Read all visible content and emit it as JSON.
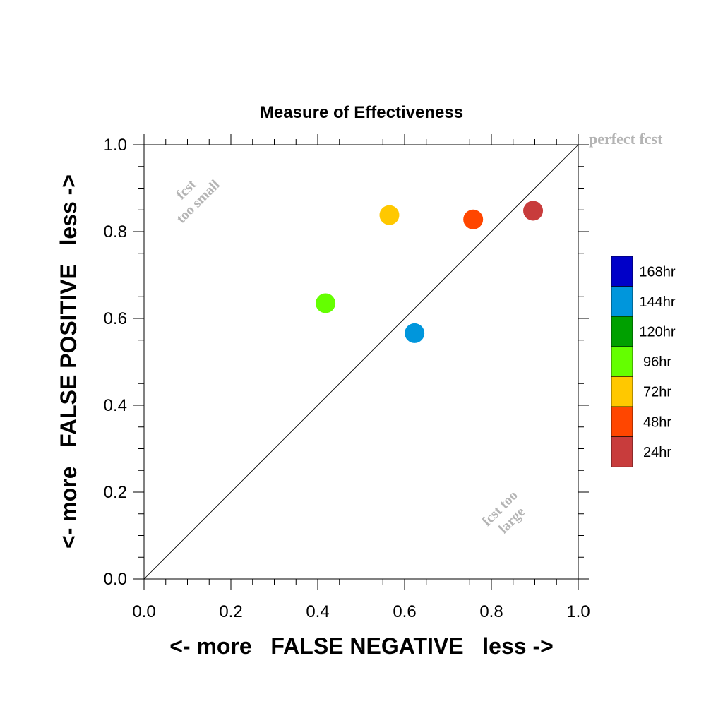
{
  "chart_data": {
    "type": "scatter",
    "title": "Measure of Effectiveness",
    "xlabel": "<- more   FALSE NEGATIVE   less ->",
    "ylabel": "<- more   FALSE POSITIVE   less ->",
    "xlim": [
      0.0,
      1.0
    ],
    "ylim": [
      0.0,
      1.0
    ],
    "x_ticks": [
      "0.0",
      "0.2",
      "0.4",
      "0.6",
      "0.8",
      "1.0"
    ],
    "y_ticks": [
      "0.0",
      "0.2",
      "0.4",
      "0.6",
      "0.8",
      "1.0"
    ],
    "grid": false,
    "legend_position": "right",
    "reference_line": {
      "x": [
        0.0,
        1.0
      ],
      "y": [
        0.0,
        1.0
      ]
    },
    "annotations": {
      "perfect": "perfect fcst",
      "small_line1": "fcst",
      "small_line2": "too small",
      "large_line1": "fcst too",
      "large_line2": "large"
    },
    "legend": [
      {
        "label": "168hr",
        "color": "#0000c8"
      },
      {
        "label": "144hr",
        "color": "#0096dc"
      },
      {
        "label": "120hr",
        "color": "#00a000"
      },
      {
        "label": "96hr",
        "color": "#64ff00"
      },
      {
        "label": "72hr",
        "color": "#ffc800"
      },
      {
        "label": "48hr",
        "color": "#ff4600"
      },
      {
        "label": "24hr",
        "color": "#c83c3c"
      }
    ],
    "points": [
      {
        "series": "144hr",
        "x": 0.623,
        "y": 0.566,
        "color": "#0096dc"
      },
      {
        "series": "96hr",
        "x": 0.418,
        "y": 0.635,
        "color": "#64ff00"
      },
      {
        "series": "72hr",
        "x": 0.565,
        "y": 0.838,
        "color": "#ffc800"
      },
      {
        "series": "48hr",
        "x": 0.758,
        "y": 0.828,
        "color": "#ff4600"
      },
      {
        "series": "24hr",
        "x": 0.896,
        "y": 0.848,
        "color": "#c83c3c"
      }
    ]
  }
}
